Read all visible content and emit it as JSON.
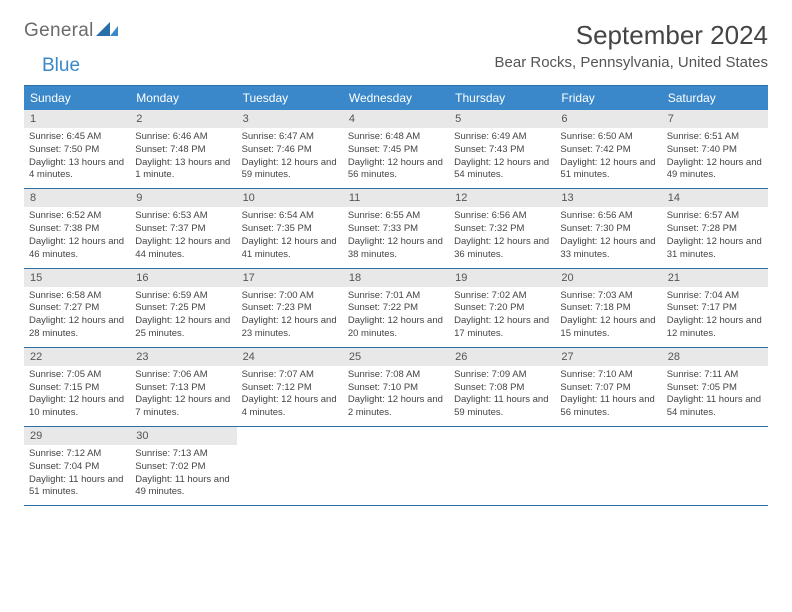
{
  "logo": {
    "part1": "General",
    "part2": "Blue"
  },
  "title": "September 2024",
  "location": "Bear Rocks, Pennsylvania, United States",
  "colors": {
    "header_bg": "#3a88c9",
    "border": "#2a6fa8",
    "daynum_bg": "#e8e8e8",
    "text": "#444444"
  },
  "day_names": [
    "Sunday",
    "Monday",
    "Tuesday",
    "Wednesday",
    "Thursday",
    "Friday",
    "Saturday"
  ],
  "weeks": [
    [
      {
        "n": "1",
        "sr": "Sunrise: 6:45 AM",
        "ss": "Sunset: 7:50 PM",
        "dl": "Daylight: 13 hours and 4 minutes."
      },
      {
        "n": "2",
        "sr": "Sunrise: 6:46 AM",
        "ss": "Sunset: 7:48 PM",
        "dl": "Daylight: 13 hours and 1 minute."
      },
      {
        "n": "3",
        "sr": "Sunrise: 6:47 AM",
        "ss": "Sunset: 7:46 PM",
        "dl": "Daylight: 12 hours and 59 minutes."
      },
      {
        "n": "4",
        "sr": "Sunrise: 6:48 AM",
        "ss": "Sunset: 7:45 PM",
        "dl": "Daylight: 12 hours and 56 minutes."
      },
      {
        "n": "5",
        "sr": "Sunrise: 6:49 AM",
        "ss": "Sunset: 7:43 PM",
        "dl": "Daylight: 12 hours and 54 minutes."
      },
      {
        "n": "6",
        "sr": "Sunrise: 6:50 AM",
        "ss": "Sunset: 7:42 PM",
        "dl": "Daylight: 12 hours and 51 minutes."
      },
      {
        "n": "7",
        "sr": "Sunrise: 6:51 AM",
        "ss": "Sunset: 7:40 PM",
        "dl": "Daylight: 12 hours and 49 minutes."
      }
    ],
    [
      {
        "n": "8",
        "sr": "Sunrise: 6:52 AM",
        "ss": "Sunset: 7:38 PM",
        "dl": "Daylight: 12 hours and 46 minutes."
      },
      {
        "n": "9",
        "sr": "Sunrise: 6:53 AM",
        "ss": "Sunset: 7:37 PM",
        "dl": "Daylight: 12 hours and 44 minutes."
      },
      {
        "n": "10",
        "sr": "Sunrise: 6:54 AM",
        "ss": "Sunset: 7:35 PM",
        "dl": "Daylight: 12 hours and 41 minutes."
      },
      {
        "n": "11",
        "sr": "Sunrise: 6:55 AM",
        "ss": "Sunset: 7:33 PM",
        "dl": "Daylight: 12 hours and 38 minutes."
      },
      {
        "n": "12",
        "sr": "Sunrise: 6:56 AM",
        "ss": "Sunset: 7:32 PM",
        "dl": "Daylight: 12 hours and 36 minutes."
      },
      {
        "n": "13",
        "sr": "Sunrise: 6:56 AM",
        "ss": "Sunset: 7:30 PM",
        "dl": "Daylight: 12 hours and 33 minutes."
      },
      {
        "n": "14",
        "sr": "Sunrise: 6:57 AM",
        "ss": "Sunset: 7:28 PM",
        "dl": "Daylight: 12 hours and 31 minutes."
      }
    ],
    [
      {
        "n": "15",
        "sr": "Sunrise: 6:58 AM",
        "ss": "Sunset: 7:27 PM",
        "dl": "Daylight: 12 hours and 28 minutes."
      },
      {
        "n": "16",
        "sr": "Sunrise: 6:59 AM",
        "ss": "Sunset: 7:25 PM",
        "dl": "Daylight: 12 hours and 25 minutes."
      },
      {
        "n": "17",
        "sr": "Sunrise: 7:00 AM",
        "ss": "Sunset: 7:23 PM",
        "dl": "Daylight: 12 hours and 23 minutes."
      },
      {
        "n": "18",
        "sr": "Sunrise: 7:01 AM",
        "ss": "Sunset: 7:22 PM",
        "dl": "Daylight: 12 hours and 20 minutes."
      },
      {
        "n": "19",
        "sr": "Sunrise: 7:02 AM",
        "ss": "Sunset: 7:20 PM",
        "dl": "Daylight: 12 hours and 17 minutes."
      },
      {
        "n": "20",
        "sr": "Sunrise: 7:03 AM",
        "ss": "Sunset: 7:18 PM",
        "dl": "Daylight: 12 hours and 15 minutes."
      },
      {
        "n": "21",
        "sr": "Sunrise: 7:04 AM",
        "ss": "Sunset: 7:17 PM",
        "dl": "Daylight: 12 hours and 12 minutes."
      }
    ],
    [
      {
        "n": "22",
        "sr": "Sunrise: 7:05 AM",
        "ss": "Sunset: 7:15 PM",
        "dl": "Daylight: 12 hours and 10 minutes."
      },
      {
        "n": "23",
        "sr": "Sunrise: 7:06 AM",
        "ss": "Sunset: 7:13 PM",
        "dl": "Daylight: 12 hours and 7 minutes."
      },
      {
        "n": "24",
        "sr": "Sunrise: 7:07 AM",
        "ss": "Sunset: 7:12 PM",
        "dl": "Daylight: 12 hours and 4 minutes."
      },
      {
        "n": "25",
        "sr": "Sunrise: 7:08 AM",
        "ss": "Sunset: 7:10 PM",
        "dl": "Daylight: 12 hours and 2 minutes."
      },
      {
        "n": "26",
        "sr": "Sunrise: 7:09 AM",
        "ss": "Sunset: 7:08 PM",
        "dl": "Daylight: 11 hours and 59 minutes."
      },
      {
        "n": "27",
        "sr": "Sunrise: 7:10 AM",
        "ss": "Sunset: 7:07 PM",
        "dl": "Daylight: 11 hours and 56 minutes."
      },
      {
        "n": "28",
        "sr": "Sunrise: 7:11 AM",
        "ss": "Sunset: 7:05 PM",
        "dl": "Daylight: 11 hours and 54 minutes."
      }
    ],
    [
      {
        "n": "29",
        "sr": "Sunrise: 7:12 AM",
        "ss": "Sunset: 7:04 PM",
        "dl": "Daylight: 11 hours and 51 minutes."
      },
      {
        "n": "30",
        "sr": "Sunrise: 7:13 AM",
        "ss": "Sunset: 7:02 PM",
        "dl": "Daylight: 11 hours and 49 minutes."
      },
      {
        "empty": true
      },
      {
        "empty": true
      },
      {
        "empty": true
      },
      {
        "empty": true
      },
      {
        "empty": true
      }
    ]
  ]
}
